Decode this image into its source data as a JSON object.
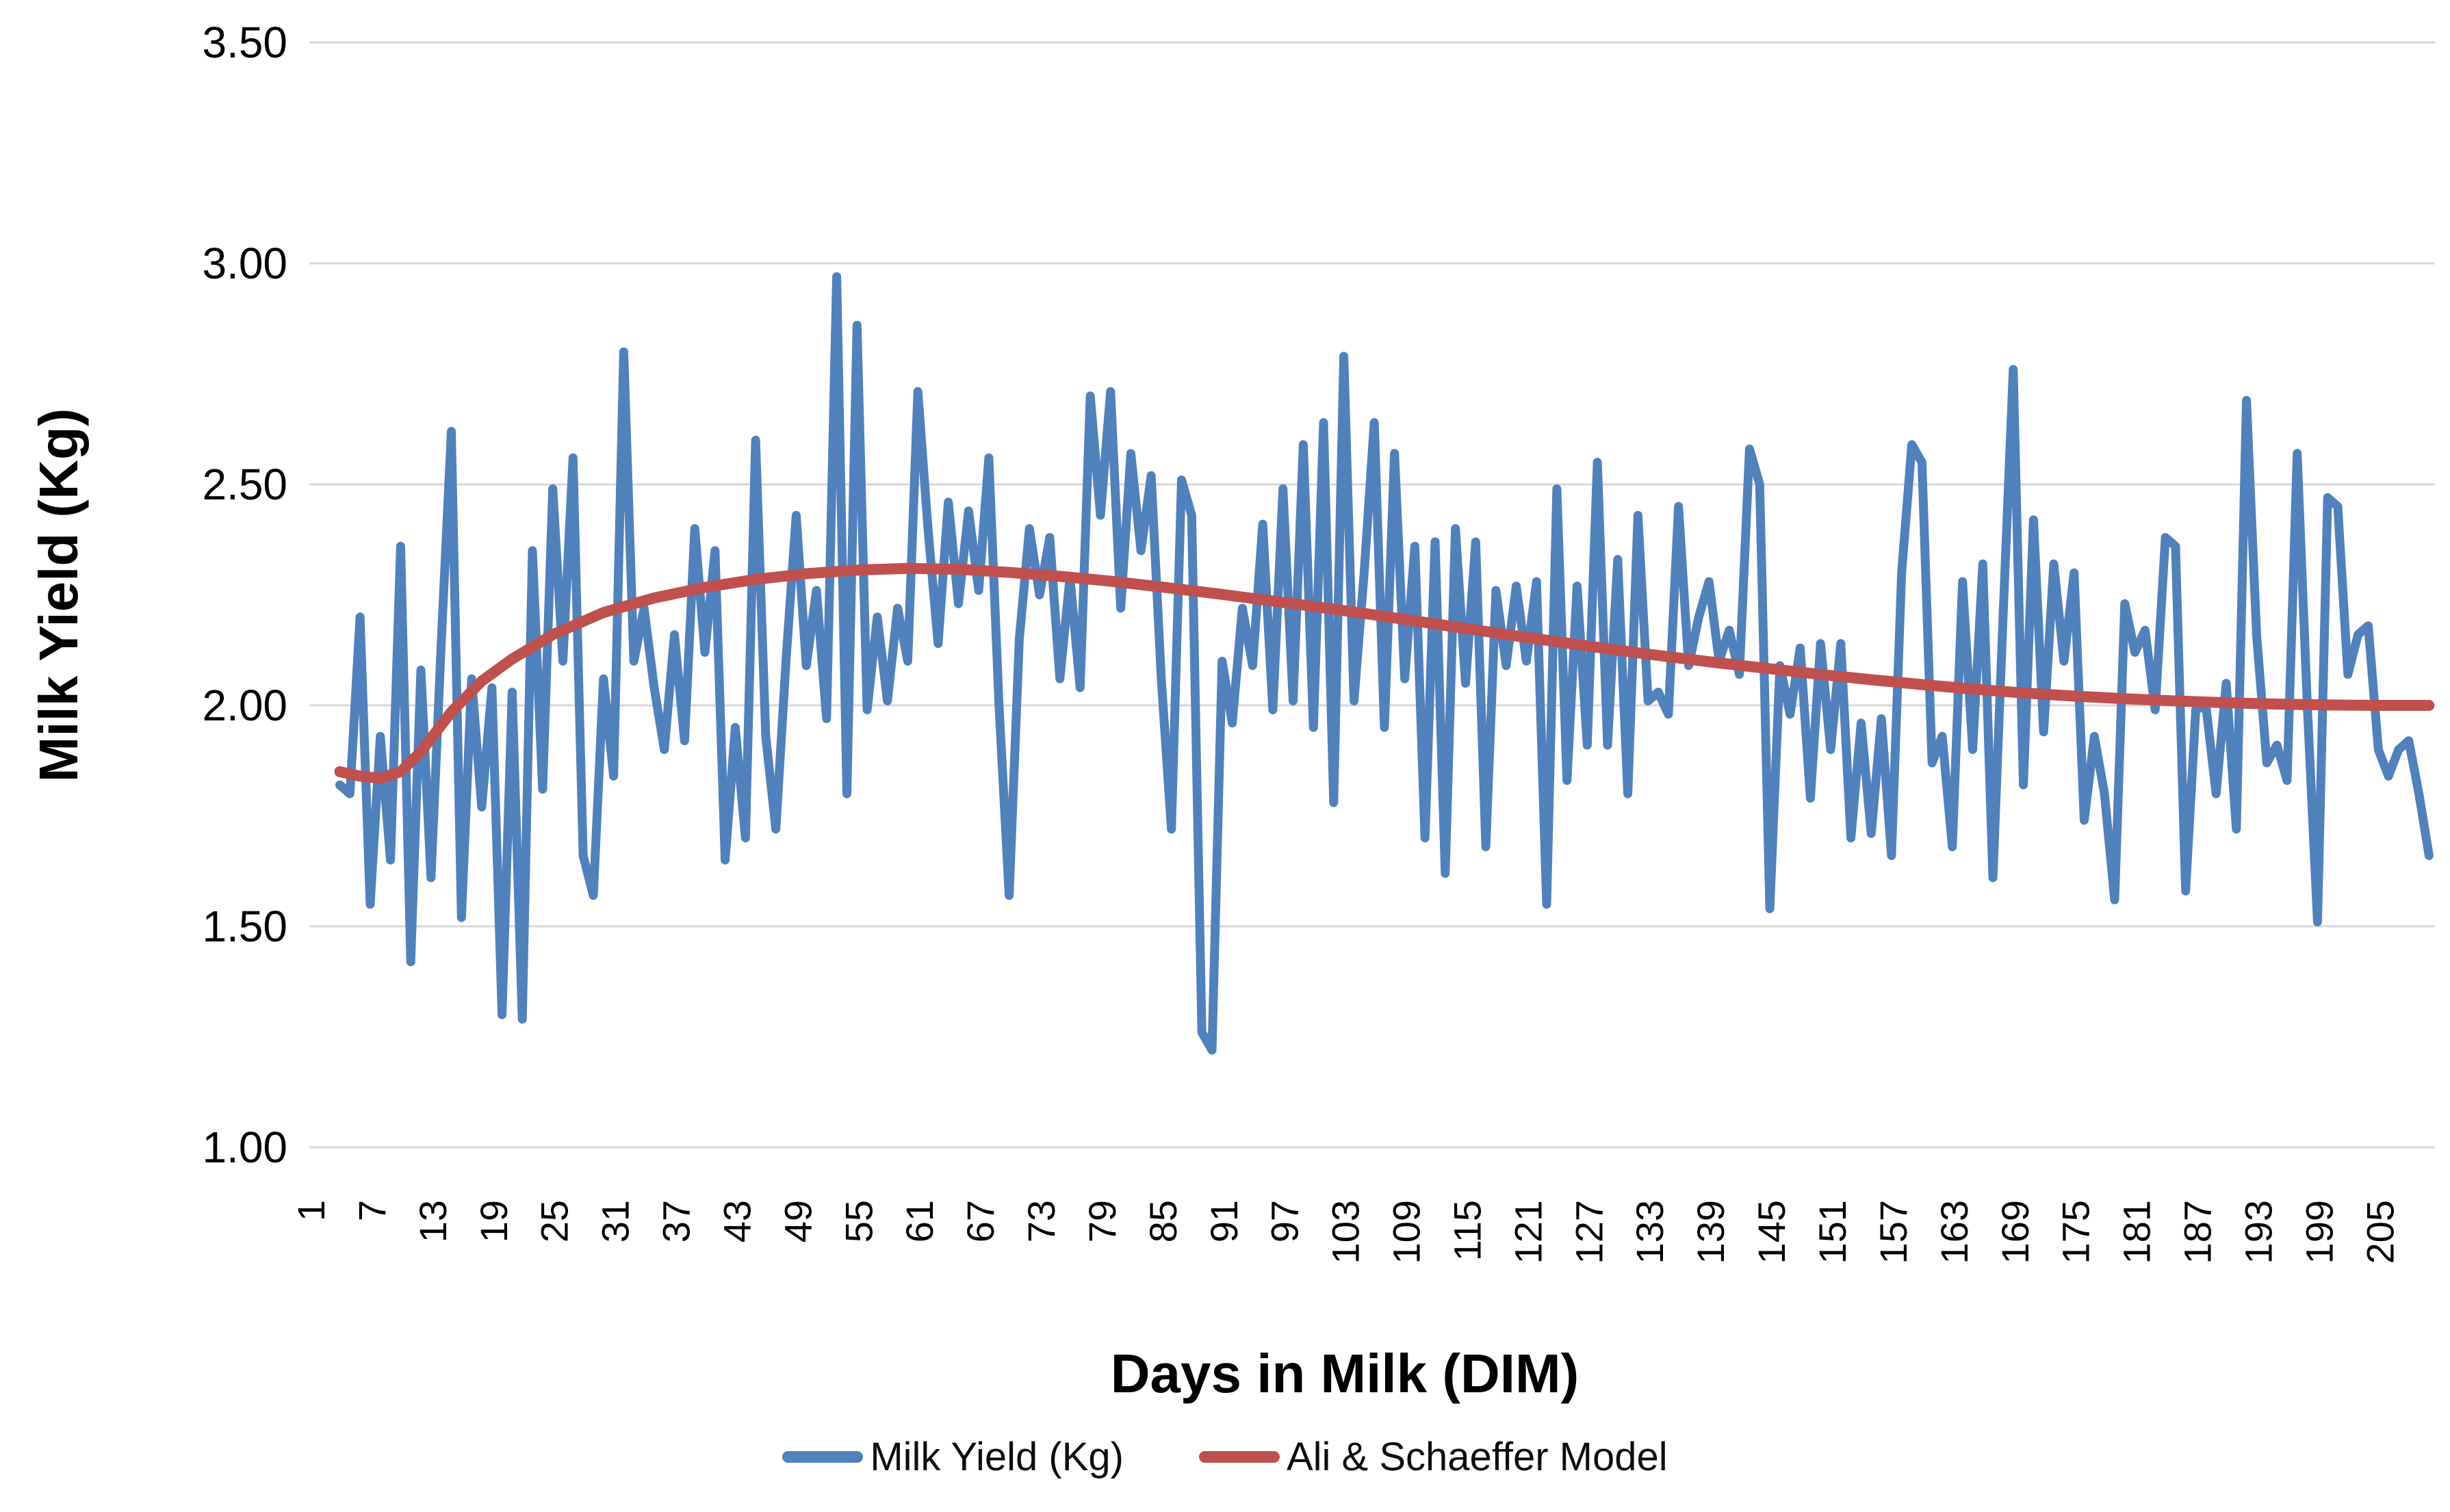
{
  "chart_data": {
    "type": "line",
    "title": "",
    "xlabel": "Days in Milk (DIM)",
    "ylabel": "Milk Yield (Kg)",
    "ylim": [
      1.0,
      3.5
    ],
    "xlim_days": [
      1,
      210
    ],
    "grid": "horizontal",
    "grid_color": "#D8D8D8",
    "background_color": "#FFFFFF",
    "tick_label_color": "#000000",
    "legend_position": "bottom",
    "y_ticks": [
      {
        "value": 3.5,
        "label": "3.50"
      },
      {
        "value": 3.0,
        "label": "3.00"
      },
      {
        "value": 2.5,
        "label": "2.50"
      },
      {
        "value": 2.0,
        "label": "2.00"
      },
      {
        "value": 1.5,
        "label": "1.50"
      },
      {
        "value": 1.0,
        "label": "1.00"
      }
    ],
    "x_ticks": [
      1,
      7,
      13,
      19,
      25,
      31,
      37,
      43,
      49,
      55,
      61,
      67,
      73,
      79,
      85,
      91,
      97,
      103,
      109,
      115,
      121,
      127,
      133,
      139,
      145,
      151,
      157,
      163,
      169,
      175,
      181,
      187,
      193,
      199,
      205
    ],
    "series": [
      {
        "name": "Milk Yield (Kg)",
        "color": "#4F81BD",
        "line_width": 13,
        "start_day": 4,
        "step": 1,
        "values": [
          1.82,
          1.8,
          2.2,
          1.55,
          1.93,
          1.65,
          2.36,
          1.42,
          2.08,
          1.61,
          2.14,
          2.62,
          1.52,
          2.06,
          1.77,
          2.04,
          1.3,
          2.03,
          1.29,
          2.35,
          1.81,
          2.49,
          2.1,
          2.56,
          1.66,
          1.57,
          2.06,
          1.84,
          2.8,
          2.1,
          2.22,
          2.04,
          1.9,
          2.16,
          1.92,
          2.4,
          2.12,
          2.35,
          1.65,
          1.95,
          1.7,
          2.6,
          1.93,
          1.72,
          2.1,
          2.43,
          2.09,
          2.26,
          1.97,
          2.97,
          1.8,
          2.86,
          1.99,
          2.2,
          2.01,
          2.22,
          2.1,
          2.71,
          2.4,
          2.14,
          2.46,
          2.23,
          2.44,
          2.26,
          2.56,
          2.0,
          1.57,
          2.15,
          2.4,
          2.25,
          2.38,
          2.06,
          2.29,
          2.04,
          2.7,
          2.43,
          2.71,
          2.22,
          2.57,
          2.35,
          2.52,
          2.06,
          1.72,
          2.51,
          2.43,
          1.26,
          1.22,
          2.1,
          1.96,
          2.22,
          2.09,
          2.41,
          1.99,
          2.49,
          2.01,
          2.59,
          1.95,
          2.64,
          1.78,
          2.79,
          2.01,
          2.3,
          2.64,
          1.95,
          2.57,
          2.06,
          2.36,
          1.7,
          2.37,
          1.62,
          2.4,
          2.05,
          2.37,
          1.68,
          2.26,
          2.09,
          2.27,
          2.1,
          2.28,
          1.55,
          2.49,
          1.83,
          2.27,
          1.91,
          2.55,
          1.91,
          2.33,
          1.8,
          2.43,
          2.01,
          2.03,
          1.98,
          2.45,
          2.09,
          2.2,
          2.28,
          2.1,
          2.17,
          2.07,
          2.58,
          2.5,
          1.54,
          2.09,
          1.98,
          2.13,
          1.79,
          2.14,
          1.9,
          2.14,
          1.7,
          1.96,
          1.71,
          1.97,
          1.66,
          2.3,
          2.59,
          2.55,
          1.87,
          1.93,
          1.68,
          2.28,
          1.9,
          2.32,
          1.61,
          2.2,
          2.76,
          1.82,
          2.42,
          1.94,
          2.32,
          2.1,
          2.3,
          1.74,
          1.93,
          1.8,
          1.56,
          2.23,
          2.12,
          2.17,
          1.99,
          2.38,
          2.36,
          1.58,
          1.99,
          2.0,
          1.8,
          2.05,
          1.72,
          2.69,
          2.16,
          1.87,
          1.91,
          1.83,
          2.57,
          2.0,
          1.51,
          2.47,
          2.45,
          2.07,
          2.16,
          2.18,
          1.9,
          1.84,
          1.9,
          1.92,
          1.8,
          1.66
        ]
      },
      {
        "name": "Ali & Schaeffer Model",
        "color": "#C0504D",
        "line_width": 16,
        "points": [
          [
            4,
            1.85
          ],
          [
            6,
            1.84
          ],
          [
            8,
            1.835
          ],
          [
            10,
            1.85
          ],
          [
            12,
            1.895
          ],
          [
            15,
            1.985
          ],
          [
            18,
            2.055
          ],
          [
            21,
            2.105
          ],
          [
            25,
            2.16
          ],
          [
            30,
            2.21
          ],
          [
            35,
            2.243
          ],
          [
            40,
            2.267
          ],
          [
            45,
            2.285
          ],
          [
            50,
            2.298
          ],
          [
            55,
            2.306
          ],
          [
            60,
            2.31
          ],
          [
            65,
            2.308
          ],
          [
            70,
            2.301
          ],
          [
            75,
            2.292
          ],
          [
            80,
            2.281
          ],
          [
            85,
            2.268
          ],
          [
            90,
            2.254
          ],
          [
            95,
            2.239
          ],
          [
            100,
            2.224
          ],
          [
            105,
            2.208
          ],
          [
            110,
            2.191
          ],
          [
            115,
            2.174
          ],
          [
            120,
            2.157
          ],
          [
            125,
            2.141
          ],
          [
            130,
            2.125
          ],
          [
            135,
            2.11
          ],
          [
            140,
            2.096
          ],
          [
            145,
            2.083
          ],
          [
            150,
            2.07
          ],
          [
            155,
            2.058
          ],
          [
            160,
            2.047
          ],
          [
            165,
            2.037
          ],
          [
            170,
            2.028
          ],
          [
            175,
            2.021
          ],
          [
            180,
            2.015
          ],
          [
            185,
            2.01
          ],
          [
            190,
            2.006
          ],
          [
            195,
            2.003
          ],
          [
            200,
            2.001
          ],
          [
            205,
            2.0
          ],
          [
            210,
            2.0
          ]
        ]
      }
    ]
  }
}
